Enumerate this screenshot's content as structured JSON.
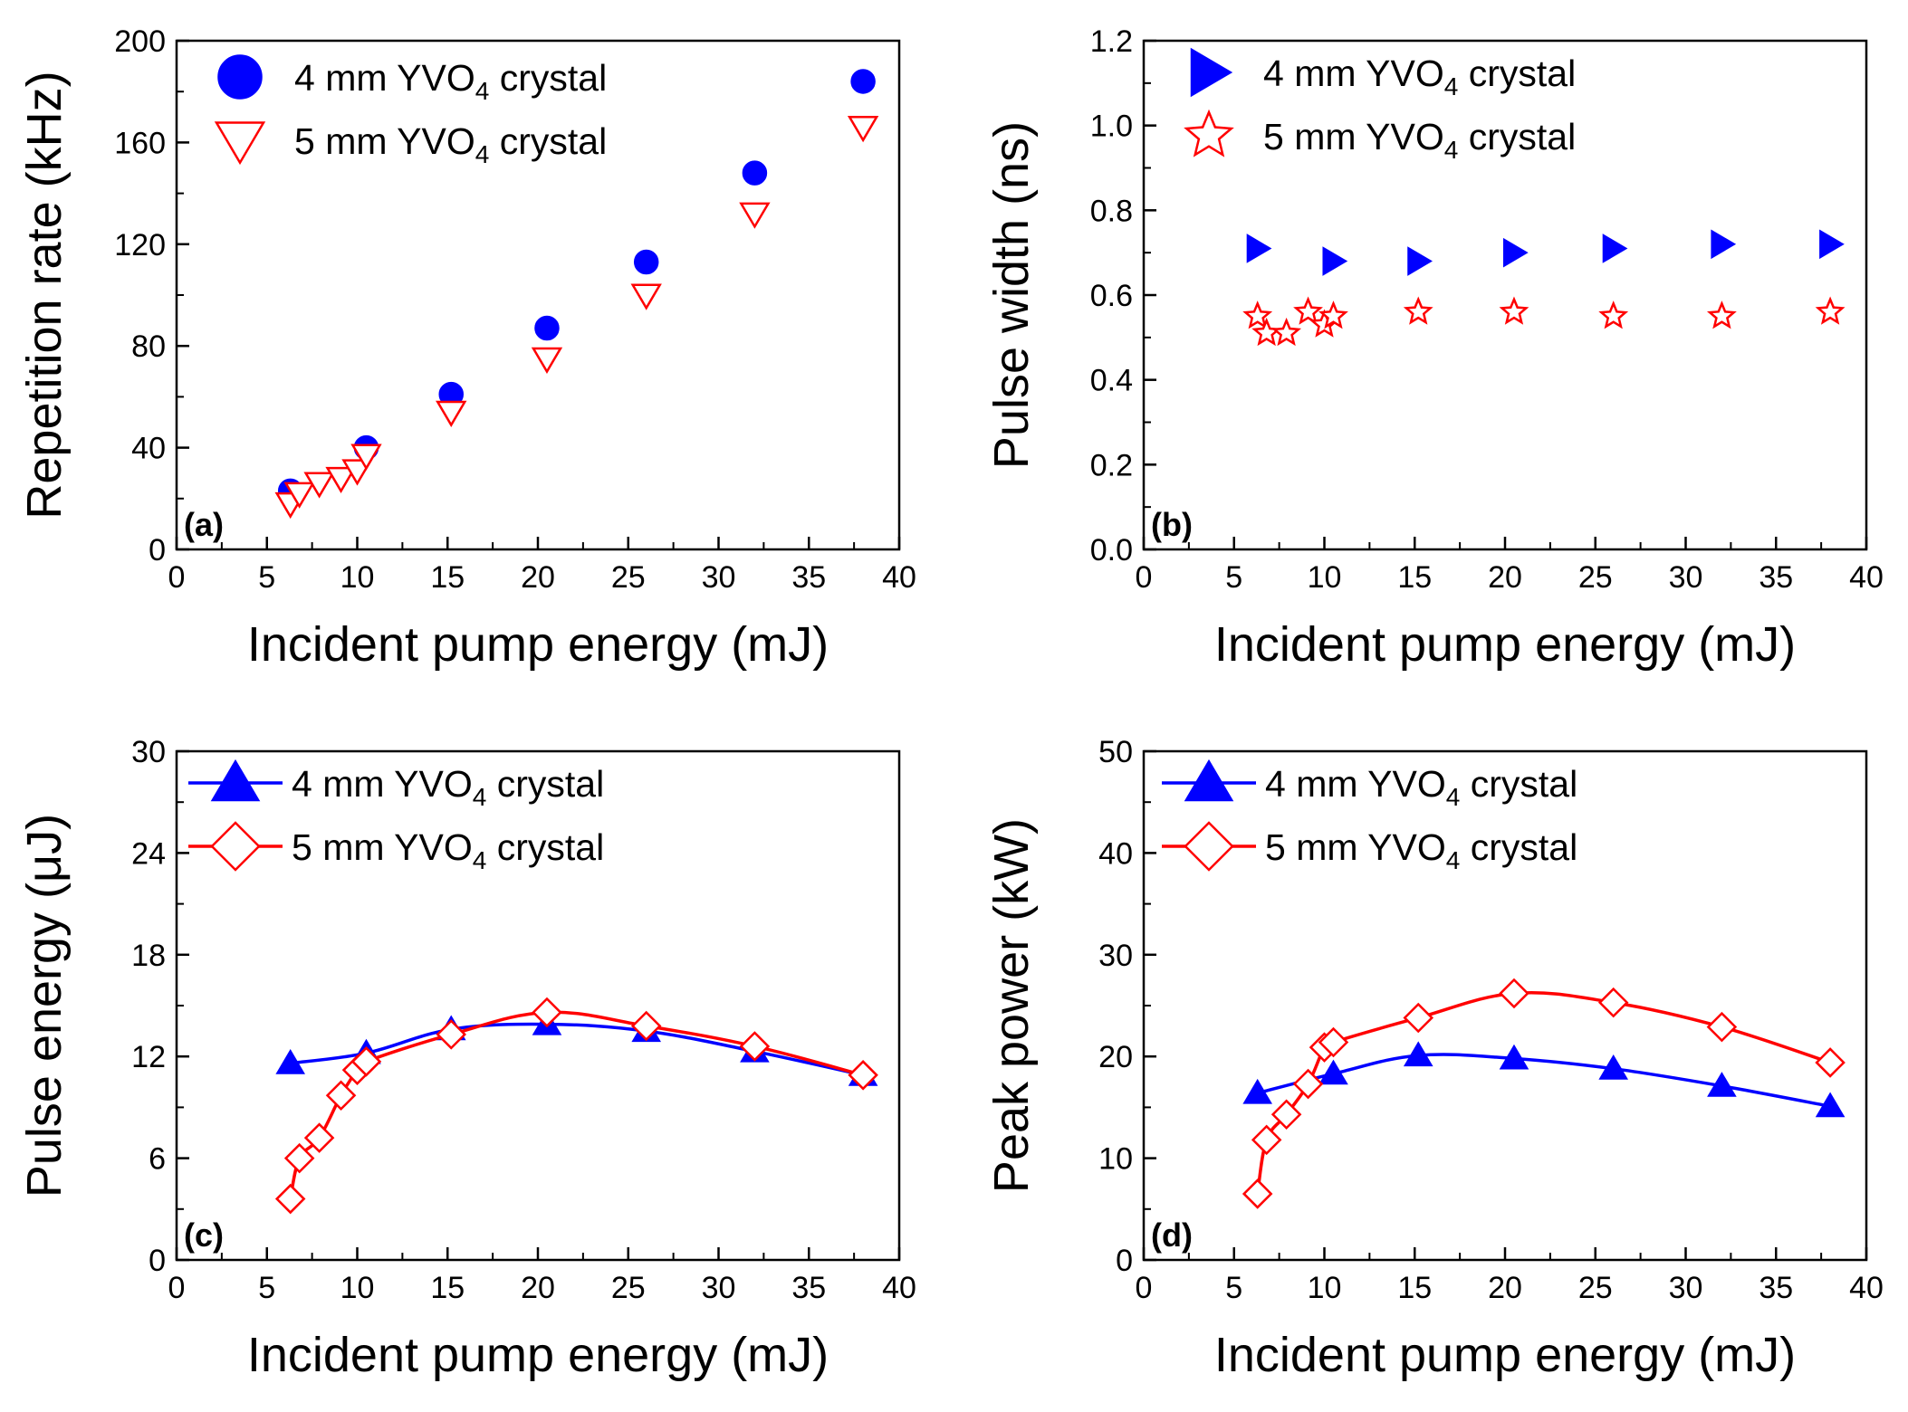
{
  "chart_data": [
    {
      "panel": "a",
      "panel_label": "(a)",
      "type": "scatter",
      "xlabel": "Incident pump energy (mJ)",
      "ylabel": "Repetition rate (kHz)",
      "xlim": [
        0,
        40
      ],
      "ylim": [
        0,
        200
      ],
      "xticks": [
        "0",
        "5",
        "10",
        "15",
        "20",
        "25",
        "30",
        "35",
        "40"
      ],
      "yticks": [
        "0",
        "40",
        "80",
        "120",
        "160",
        "200"
      ],
      "series": [
        {
          "name": "4 mm YVO4 crystal",
          "legend_main": "4 mm YVO",
          "legend_sub": "4",
          "legend_tail": " crystal",
          "marker": "circle",
          "filled": true,
          "color": "#0000ff",
          "line": false,
          "x": [
            6.3,
            10.5,
            15.2,
            20.5,
            26.0,
            32.0,
            38.0
          ],
          "y": [
            23,
            40,
            61,
            87,
            113,
            148,
            184
          ]
        },
        {
          "name": "5 mm YVO4 crystal",
          "legend_main": "5 mm YVO",
          "legend_sub": "4",
          "legend_tail": " crystal",
          "marker": "triangle-down",
          "filled": false,
          "color": "#ff0000",
          "line": false,
          "x": [
            6.3,
            6.8,
            7.9,
            9.1,
            10.0,
            10.5,
            15.2,
            20.5,
            26.0,
            32.0,
            38.0
          ],
          "y": [
            18,
            22,
            26,
            28,
            31,
            37,
            54,
            75,
            100,
            132,
            166
          ]
        }
      ]
    },
    {
      "panel": "b",
      "panel_label": "(b)",
      "type": "scatter",
      "xlabel": "Incident pump energy (mJ)",
      "ylabel": "Pulse width (ns)",
      "xlim": [
        0,
        40
      ],
      "ylim": [
        0,
        1.2
      ],
      "xticks": [
        "0",
        "5",
        "10",
        "15",
        "20",
        "25",
        "30",
        "35",
        "40"
      ],
      "yticks": [
        "0.0",
        "0.2",
        "0.4",
        "0.6",
        "0.8",
        "1.0",
        "1.2"
      ],
      "series": [
        {
          "name": "4 mm YVO4 crystal",
          "legend_main": "4 mm YVO",
          "legend_sub": "4",
          "legend_tail": " crystal",
          "marker": "triangle-right",
          "filled": true,
          "color": "#0000ff",
          "line": false,
          "x": [
            6.3,
            10.5,
            15.2,
            20.5,
            26.0,
            32.0,
            38.0
          ],
          "y": [
            0.71,
            0.68,
            0.68,
            0.7,
            0.71,
            0.72,
            0.72
          ]
        },
        {
          "name": "5 mm YVO4 crystal",
          "legend_main": "5 mm YVO",
          "legend_sub": "4",
          "legend_tail": " crystal",
          "marker": "star",
          "filled": false,
          "color": "#ff0000",
          "line": false,
          "x": [
            6.3,
            6.8,
            7.9,
            9.1,
            10.0,
            10.5,
            15.2,
            20.5,
            26.0,
            32.0,
            38.0
          ],
          "y": [
            0.55,
            0.51,
            0.51,
            0.56,
            0.53,
            0.55,
            0.56,
            0.56,
            0.55,
            0.55,
            0.56
          ]
        }
      ]
    },
    {
      "panel": "c",
      "panel_label": "(c)",
      "type": "line",
      "xlabel": "Incident pump energy (mJ)",
      "ylabel": "Pulse energy (μJ)",
      "xlim": [
        0,
        40
      ],
      "ylim": [
        0,
        30
      ],
      "xticks": [
        "0",
        "5",
        "10",
        "15",
        "20",
        "25",
        "30",
        "35",
        "40"
      ],
      "yticks": [
        "0",
        "6",
        "12",
        "18",
        "24",
        "30"
      ],
      "series": [
        {
          "name": "4 mm YVO4 crystal",
          "legend_main": "4 mm YVO",
          "legend_sub": "4",
          "legend_tail": " crystal",
          "marker": "triangle-up",
          "filled": true,
          "color": "#0000ff",
          "line": true,
          "x": [
            6.3,
            10.5,
            15.2,
            20.5,
            26.0,
            32.0,
            38.0
          ],
          "y": [
            11.6,
            12.2,
            13.6,
            13.9,
            13.5,
            12.3,
            10.9
          ]
        },
        {
          "name": "5 mm YVO4 crystal",
          "legend_main": "5 mm YVO",
          "legend_sub": "4",
          "legend_tail": " crystal",
          "marker": "diamond",
          "filled": false,
          "color": "#ff0000",
          "line": true,
          "x": [
            6.3,
            6.8,
            7.9,
            9.1,
            10.0,
            10.5,
            15.2,
            20.5,
            26.0,
            32.0,
            38.0
          ],
          "y": [
            3.6,
            6.0,
            7.2,
            9.7,
            11.2,
            11.7,
            13.3,
            14.6,
            13.8,
            12.6,
            10.9
          ]
        }
      ]
    },
    {
      "panel": "d",
      "panel_label": "(d)",
      "type": "line",
      "xlabel": "Incident pump energy (mJ)",
      "ylabel": "Peak power (kW)",
      "xlim": [
        0,
        40
      ],
      "ylim": [
        0,
        50
      ],
      "xticks": [
        "0",
        "5",
        "10",
        "15",
        "20",
        "25",
        "30",
        "35",
        "40"
      ],
      "yticks": [
        "0",
        "10",
        "20",
        "30",
        "40",
        "50"
      ],
      "series": [
        {
          "name": "4 mm YVO4 crystal",
          "legend_main": "4 mm YVO",
          "legend_sub": "4",
          "legend_tail": " crystal",
          "marker": "triangle-up",
          "filled": true,
          "color": "#0000ff",
          "line": true,
          "x": [
            6.3,
            10.5,
            15.2,
            20.5,
            26.0,
            32.0,
            38.0
          ],
          "y": [
            16.4,
            18.3,
            20.1,
            19.8,
            18.8,
            17.1,
            15.1
          ]
        },
        {
          "name": "5 mm YVO4 crystal",
          "legend_main": "5 mm YVO",
          "legend_sub": "4",
          "legend_tail": " crystal",
          "marker": "diamond",
          "filled": false,
          "color": "#ff0000",
          "line": true,
          "x": [
            6.3,
            6.8,
            7.9,
            9.1,
            10.0,
            10.5,
            15.2,
            20.5,
            26.0,
            32.0,
            38.0
          ],
          "y": [
            6.5,
            11.8,
            14.3,
            17.3,
            20.9,
            21.4,
            23.8,
            26.2,
            25.3,
            22.9,
            19.4
          ]
        }
      ]
    }
  ]
}
